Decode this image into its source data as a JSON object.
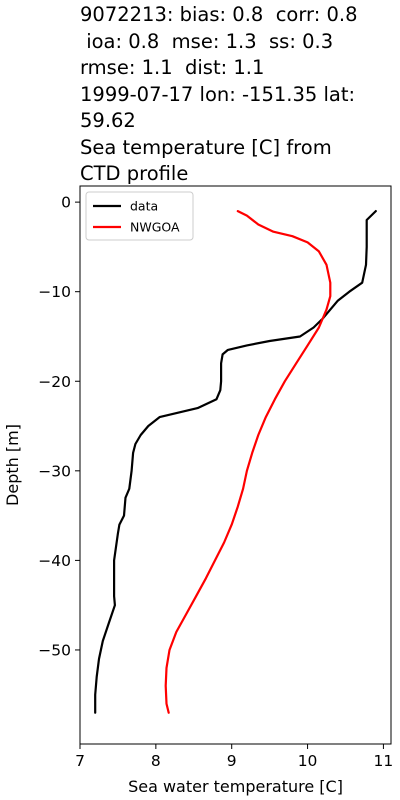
{
  "chart_data": {
    "type": "line",
    "title_lines": [
      "9072213: bias: 0.8  corr: 0.8",
      " ioa: 0.8  mse: 1.3  ss: 0.3",
      "rmse: 1.1  dist: 1.1",
      "1999-07-17 lon: -151.35 lat:",
      "59.62",
      "Sea temperature [C] from",
      "CTD profile"
    ],
    "xlabel": "Sea water temperature [C]",
    "ylabel": "Depth [m]",
    "xlim": [
      7,
      11.1
    ],
    "ylim": [
      -60.5,
      1.8
    ],
    "xticks": [
      7,
      8,
      9,
      10,
      11
    ],
    "yticks": [
      0,
      -10,
      -20,
      -30,
      -40,
      -50
    ],
    "legend_position": "upper-left",
    "series": [
      {
        "name": "data",
        "color": "#000000",
        "points": [
          [
            10.9,
            -1
          ],
          [
            10.78,
            -2
          ],
          [
            10.78,
            -3
          ],
          [
            10.78,
            -5
          ],
          [
            10.77,
            -7
          ],
          [
            10.72,
            -9
          ],
          [
            10.55,
            -10
          ],
          [
            10.4,
            -11
          ],
          [
            10.3,
            -12
          ],
          [
            10.2,
            -13
          ],
          [
            10.08,
            -14
          ],
          [
            9.9,
            -15
          ],
          [
            9.5,
            -15.5
          ],
          [
            9.2,
            -16
          ],
          [
            8.95,
            -16.5
          ],
          [
            8.88,
            -17
          ],
          [
            8.86,
            -18
          ],
          [
            8.86,
            -19
          ],
          [
            8.86,
            -20
          ],
          [
            8.85,
            -21
          ],
          [
            8.8,
            -22
          ],
          [
            8.55,
            -23
          ],
          [
            8.05,
            -24
          ],
          [
            7.9,
            -25
          ],
          [
            7.8,
            -26
          ],
          [
            7.73,
            -27
          ],
          [
            7.7,
            -28
          ],
          [
            7.68,
            -30
          ],
          [
            7.65,
            -32
          ],
          [
            7.6,
            -33
          ],
          [
            7.58,
            -35
          ],
          [
            7.52,
            -36
          ],
          [
            7.5,
            -37
          ],
          [
            7.45,
            -40
          ],
          [
            7.45,
            -44
          ],
          [
            7.46,
            -45
          ],
          [
            7.38,
            -47
          ],
          [
            7.3,
            -49
          ],
          [
            7.25,
            -51
          ],
          [
            7.22,
            -53
          ],
          [
            7.2,
            -55
          ],
          [
            7.2,
            -57
          ]
        ]
      },
      {
        "name": "NWGOA",
        "color": "#ff0000",
        "points": [
          [
            9.08,
            -1
          ],
          [
            9.2,
            -1.5
          ],
          [
            9.35,
            -2.5
          ],
          [
            9.55,
            -3.3
          ],
          [
            9.8,
            -3.8
          ],
          [
            10.0,
            -4.5
          ],
          [
            10.15,
            -5.5
          ],
          [
            10.25,
            -7
          ],
          [
            10.3,
            -9
          ],
          [
            10.3,
            -10.5
          ],
          [
            10.25,
            -12
          ],
          [
            10.15,
            -14
          ],
          [
            10.0,
            -16
          ],
          [
            9.85,
            -18
          ],
          [
            9.7,
            -20
          ],
          [
            9.57,
            -22
          ],
          [
            9.45,
            -24
          ],
          [
            9.35,
            -26
          ],
          [
            9.27,
            -28
          ],
          [
            9.2,
            -30
          ],
          [
            9.15,
            -32
          ],
          [
            9.08,
            -34
          ],
          [
            9.0,
            -36
          ],
          [
            8.9,
            -38
          ],
          [
            8.78,
            -40
          ],
          [
            8.66,
            -42
          ],
          [
            8.53,
            -44
          ],
          [
            8.4,
            -46
          ],
          [
            8.27,
            -48
          ],
          [
            8.18,
            -50
          ],
          [
            8.14,
            -52
          ],
          [
            8.13,
            -54
          ],
          [
            8.14,
            -56
          ],
          [
            8.17,
            -57
          ]
        ]
      }
    ]
  }
}
